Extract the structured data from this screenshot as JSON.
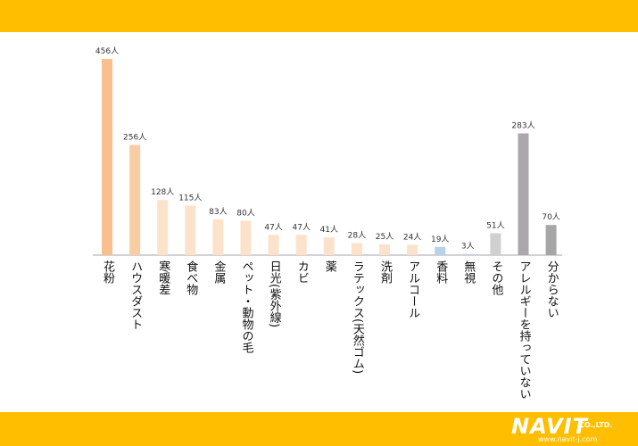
{
  "chart_data": {
    "type": "bar",
    "categories": [
      "花粉",
      "ハウスダスト",
      "寒暖差",
      "食べ物",
      "金属",
      "ペット・動物の毛",
      "日光(紫外線)",
      "カビ",
      "薬",
      "ラテックス(天然ゴム)",
      "洗剤",
      "アルコール",
      "香料",
      "無視",
      "その他",
      "アレルギーを持っていない",
      "分からない"
    ],
    "values": [
      456,
      256,
      128,
      115,
      83,
      80,
      47,
      47,
      41,
      28,
      25,
      24,
      19,
      3,
      51,
      283,
      70
    ],
    "value_labels": [
      "456人",
      "256人",
      "128人",
      "115人",
      "83人",
      "80人",
      "47人",
      "47人",
      "41人",
      "28人",
      "25人",
      "24人",
      "19人",
      "3人",
      "51人",
      "283人",
      "70人"
    ],
    "bar_colors": [
      "#F8C08E",
      "#F9CDA4",
      "#FCE2CB",
      "#FCE2CB",
      "#FCE2CB",
      "#FCE2CB",
      "#FCE2CB",
      "#FCE2CB",
      "#FCE2CB",
      "#FCE2CB",
      "#FCE2CB",
      "#FCE2CB",
      "#B9D1EA",
      "#C4D5EC",
      "#D0D0D0",
      "#ABA7AD",
      "#A6A6A6"
    ],
    "title": "",
    "xlabel": "",
    "ylabel": "",
    "ylim": [
      0,
      456
    ],
    "grid": false,
    "legend": "none"
  },
  "branding": {
    "logo_text": "NAVIT",
    "company_suffix": "CO.,LTD.",
    "url": "www.navit-j.com"
  },
  "colors": {
    "band": "#FFBE00",
    "axis": "#A6A6A6",
    "text": "#111111"
  }
}
